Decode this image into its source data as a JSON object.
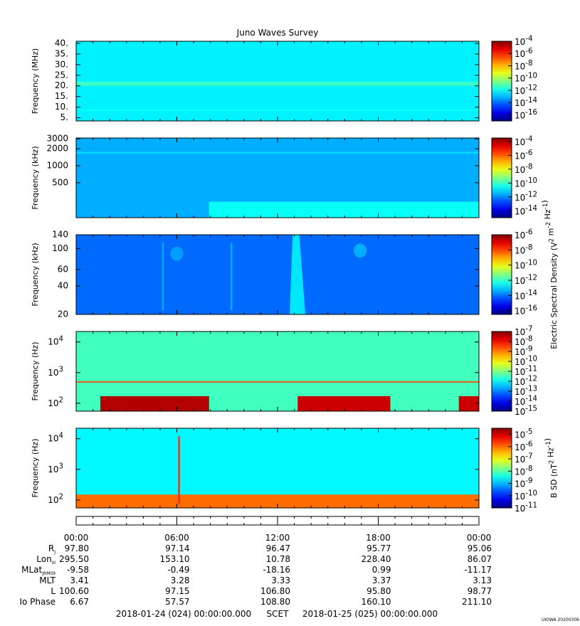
{
  "chart_data": {
    "type": "heatmap",
    "title": "Juno Waves Survey",
    "x_tick_labels": [
      "00:00",
      "06:00",
      "12:00",
      "18:00",
      "00:00"
    ],
    "panels": [
      {
        "ylabel": "Frequency (MHz)",
        "ytick_labels": [
          "40.",
          "35.",
          "30.",
          "25.",
          "20.",
          "15.",
          "10.",
          "5."
        ],
        "yticks": [
          40,
          35,
          30,
          25,
          20,
          15,
          10,
          5
        ],
        "yscale": "linear",
        "ylim": [
          3.5,
          41
        ],
        "colorbar_labels": [
          "10^-4",
          "10^-6",
          "10^-8",
          "10^-10",
          "10^-12",
          "10^-14",
          "10^-16"
        ],
        "colorbar_range": [
          -17,
          -4
        ],
        "colorbar_title": "",
        "background_level": -12.3,
        "features": [
          {
            "kind": "band",
            "y_center": 21,
            "y_halfwidth": 1.0,
            "level": -11.3
          },
          {
            "kind": "band",
            "y_center": 8.5,
            "y_halfwidth": 0.4,
            "level": -12.0
          }
        ]
      },
      {
        "ylabel": "Frequency (kHz)",
        "ytick_labels": [
          "3000",
          "2000",
          "1000",
          "500"
        ],
        "yticks": [
          3000,
          2000,
          1000,
          500
        ],
        "yscale": "log",
        "ylim": [
          120,
          3100
        ],
        "colorbar_labels": [
          "10^-4",
          "10^-6",
          "10^-8",
          "10^-10",
          "10^-12",
          "10^-14"
        ],
        "colorbar_range": [
          -15,
          -3.5
        ],
        "colorbar_title": "",
        "background_level": -11.6,
        "features": [
          {
            "kind": "band",
            "y_center": 1700,
            "y_halfwidth": 60,
            "level": -11.0
          },
          {
            "kind": "region",
            "x_start": 0.33,
            "x_end": 1.0,
            "y_top": 230,
            "level": -10.6
          }
        ]
      },
      {
        "ylabel": "Frequency (kHz)",
        "ytick_labels": [
          "140",
          "100",
          "60",
          "40",
          "20"
        ],
        "yticks": [
          140,
          100,
          60,
          40,
          20
        ],
        "yscale": "log",
        "ylim": [
          20,
          140
        ],
        "colorbar_labels": [
          "10^-6",
          "10^-8",
          "10^-10",
          "10^-12",
          "10^-14",
          "10^-16"
        ],
        "colorbar_range": [
          -16.5,
          -6
        ],
        "colorbar_title": "Electric Spectral Density (V^2 m^-2 Hz^-1)",
        "background_level": -14.1,
        "features": [
          {
            "kind": "burst",
            "x": 0.545,
            "width": 0.03,
            "level": -12.6
          },
          {
            "kind": "blob",
            "x": 0.705,
            "y": 95,
            "level": -13.3
          },
          {
            "kind": "blob",
            "x": 0.25,
            "y": 88,
            "level": -13.5
          },
          {
            "kind": "streak",
            "x": 0.215,
            "level": -13.3
          },
          {
            "kind": "streak",
            "x": 0.385,
            "level": -13.3
          }
        ]
      },
      {
        "ylabel": "Frequency (Hz)",
        "ytick_labels": [
          "10^4",
          "10^3",
          "10^2"
        ],
        "yticks": [
          10000,
          1000,
          100
        ],
        "yscale": "log",
        "ylim": [
          55,
          22000
        ],
        "colorbar_labels": [
          "10^-7",
          "10^-8",
          "10^-9",
          "10^-10",
          "10^-11",
          "10^-12",
          "10^-13",
          "10^-14",
          "10^-15"
        ],
        "colorbar_range": [
          -15,
          -7
        ],
        "colorbar_title": "",
        "background_level": -11.5,
        "features": [
          {
            "kind": "region",
            "x_start": 0.06,
            "x_end": 0.33,
            "y_top": 170,
            "level": -7.4
          },
          {
            "kind": "region",
            "x_start": 0.55,
            "x_end": 0.78,
            "y_top": 170,
            "level": -7.6
          },
          {
            "kind": "region",
            "x_start": 0.95,
            "x_end": 1.0,
            "y_top": 170,
            "level": -7.6
          },
          {
            "kind": "band",
            "y_center": 500,
            "y_halfwidth": 25,
            "level": -8.6
          }
        ]
      },
      {
        "ylabel": "Frequency (Hz)",
        "ytick_labels": [
          "10^4",
          "10^3",
          "10^2"
        ],
        "yticks": [
          10000,
          1000,
          100
        ],
        "yscale": "log",
        "ylim": [
          55,
          22000
        ],
        "colorbar_labels": [
          "10^-5",
          "10^-6",
          "10^-7",
          "10^-8",
          "10^-9",
          "10^-10",
          "10^-11"
        ],
        "colorbar_range": [
          -11,
          -4.5
        ],
        "colorbar_title": "B SD (nT^2 Hz^-1)",
        "background_level": -8.6,
        "features": [
          {
            "kind": "region",
            "x_start": 0.0,
            "x_end": 1.0,
            "y_top": 150,
            "level": -6.0
          },
          {
            "kind": "streak",
            "x": 0.255,
            "level": -5.5
          }
        ]
      }
    ],
    "ephemeris": {
      "rows": [
        {
          "label": "R",
          "sub": "J",
          "values": [
            "97.80",
            "97.14",
            "96.47",
            "95.77",
            "95.06"
          ]
        },
        {
          "label": "Lon",
          "sub": "III",
          "values": [
            "295.50",
            "153.10",
            "10.78",
            "228.40",
            "86.07"
          ]
        },
        {
          "label": "MLat",
          "sub": "JRM09",
          "values": [
            "-9.58",
            "-0.49",
            "-18.16",
            "0.99",
            "-11.17"
          ]
        },
        {
          "label": "MLT",
          "sub": "",
          "values": [
            "3.41",
            "3.28",
            "3.33",
            "3.37",
            "3.13"
          ]
        },
        {
          "label": "L",
          "sub": "",
          "values": [
            "100.60",
            "97.15",
            "106.80",
            "95.80",
            "98.77"
          ]
        },
        {
          "label": "Io Phase",
          "sub": "",
          "values": [
            "6.67",
            "57.57",
            "108.80",
            "160.10",
            "211.10"
          ]
        }
      ],
      "start_time": "2018-01-24 (024) 00:00:00.000",
      "scet_label": "SCET",
      "end_time": "2018-01-25 (025) 00:00:00.000"
    },
    "footer_tag": "UIOWA 20200306"
  }
}
